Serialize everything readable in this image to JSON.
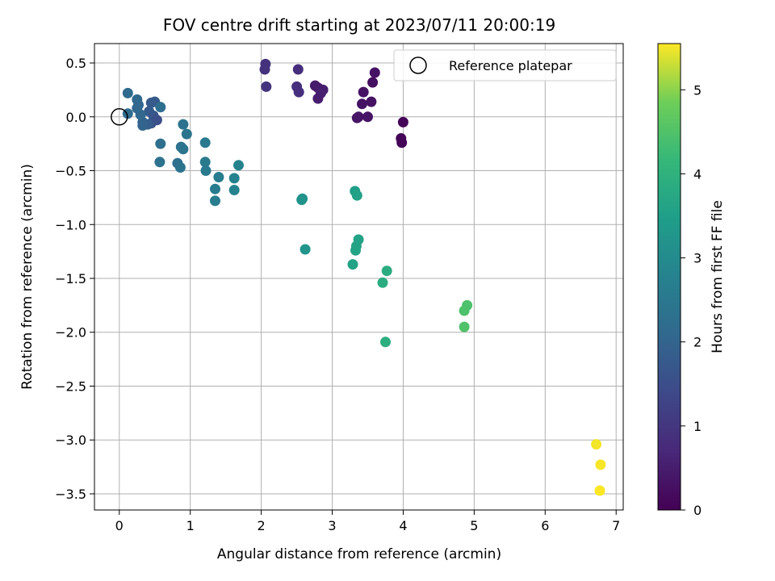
{
  "chart_data": {
    "type": "scatter",
    "title": "FOV centre drift starting at 2023/07/11 20:00:19",
    "xlabel": "Angular distance from reference (arcmin)",
    "ylabel": "Rotation from reference (arcmin)",
    "colorbar_label": "Hours from first FF file",
    "xlim": [
      -0.35,
      7.1
    ],
    "ylim": [
      -3.65,
      0.68
    ],
    "clim": [
      0,
      5.55
    ],
    "xticks": [
      0,
      1,
      2,
      3,
      4,
      5,
      6,
      7
    ],
    "yticks": [
      0.5,
      0.0,
      -0.5,
      -1.0,
      -1.5,
      -2.0,
      -2.5,
      -3.0,
      -3.5
    ],
    "ytick_labels": [
      "0.5",
      "0.0",
      "−0.5",
      "−1.0",
      "−1.5",
      "−2.0",
      "−2.5",
      "−3.0",
      "−3.5"
    ],
    "cticks": [
      0,
      1,
      2,
      3,
      4,
      5
    ],
    "grid": true,
    "colormap": "viridis",
    "legend": {
      "label": "Reference platepar",
      "placement": "upper right"
    },
    "reference_point": {
      "x": 0,
      "y": 0
    },
    "points": [
      {
        "x": 4.0,
        "y": -0.05,
        "t": 0.05
      },
      {
        "x": 3.97,
        "y": -0.2,
        "t": 0.05
      },
      {
        "x": 3.98,
        "y": -0.24,
        "t": 0.08
      },
      {
        "x": 3.6,
        "y": 0.41,
        "t": 0.3
      },
      {
        "x": 3.57,
        "y": 0.32,
        "t": 0.25
      },
      {
        "x": 3.44,
        "y": 0.23,
        "t": 0.3
      },
      {
        "x": 3.55,
        "y": 0.14,
        "t": 0.3
      },
      {
        "x": 3.42,
        "y": 0.12,
        "t": 0.3
      },
      {
        "x": 3.37,
        "y": 0.0,
        "t": 0.35
      },
      {
        "x": 3.35,
        "y": -0.01,
        "t": 0.35
      },
      {
        "x": 3.5,
        "y": 0.0,
        "t": 0.35
      },
      {
        "x": 2.76,
        "y": 0.29,
        "t": 0.45
      },
      {
        "x": 2.8,
        "y": 0.27,
        "t": 0.45
      },
      {
        "x": 2.87,
        "y": 0.25,
        "t": 0.5
      },
      {
        "x": 2.84,
        "y": 0.22,
        "t": 0.55
      },
      {
        "x": 2.8,
        "y": 0.17,
        "t": 0.5
      },
      {
        "x": 2.52,
        "y": 0.44,
        "t": 0.8
      },
      {
        "x": 2.5,
        "y": 0.28,
        "t": 0.85
      },
      {
        "x": 2.53,
        "y": 0.23,
        "t": 0.85
      },
      {
        "x": 2.06,
        "y": 0.49,
        "t": 0.9
      },
      {
        "x": 2.05,
        "y": 0.44,
        "t": 0.9
      },
      {
        "x": 2.07,
        "y": 0.28,
        "t": 0.95
      },
      {
        "x": 0.5,
        "y": 0.14,
        "t": 1.8
      },
      {
        "x": 0.45,
        "y": 0.13,
        "t": 1.8
      },
      {
        "x": 0.42,
        "y": 0.05,
        "t": 1.8
      },
      {
        "x": 0.48,
        "y": 0.01,
        "t": 1.7
      },
      {
        "x": 0.53,
        "y": -0.03,
        "t": 1.55
      },
      {
        "x": 0.45,
        "y": -0.06,
        "t": 1.6
      },
      {
        "x": 0.4,
        "y": -0.07,
        "t": 1.85
      },
      {
        "x": 0.33,
        "y": -0.05,
        "t": 2.0
      },
      {
        "x": 0.33,
        "y": -0.08,
        "t": 2.0
      },
      {
        "x": 0.3,
        "y": 0.02,
        "t": 2.05
      },
      {
        "x": 0.25,
        "y": 0.08,
        "t": 2.05
      },
      {
        "x": 0.27,
        "y": 0.11,
        "t": 2.05
      },
      {
        "x": 0.25,
        "y": 0.16,
        "t": 2.1
      },
      {
        "x": 0.12,
        "y": 0.22,
        "t": 2.15
      },
      {
        "x": 0.12,
        "y": 0.03,
        "t": 2.2
      },
      {
        "x": 0.58,
        "y": 0.09,
        "t": 2.25
      },
      {
        "x": 0.58,
        "y": -0.25,
        "t": 2.3
      },
      {
        "x": 0.57,
        "y": -0.42,
        "t": 2.35
      },
      {
        "x": 0.82,
        "y": -0.43,
        "t": 2.3
      },
      {
        "x": 0.87,
        "y": -0.28,
        "t": 2.35
      },
      {
        "x": 0.9,
        "y": -0.3,
        "t": 2.4
      },
      {
        "x": 0.86,
        "y": -0.47,
        "t": 2.4
      },
      {
        "x": 0.9,
        "y": -0.07,
        "t": 2.35
      },
      {
        "x": 0.95,
        "y": -0.16,
        "t": 2.4
      },
      {
        "x": 1.21,
        "y": -0.24,
        "t": 2.5
      },
      {
        "x": 1.21,
        "y": -0.42,
        "t": 2.55
      },
      {
        "x": 1.22,
        "y": -0.5,
        "t": 2.55
      },
      {
        "x": 1.4,
        "y": -0.56,
        "t": 2.65
      },
      {
        "x": 1.35,
        "y": -0.67,
        "t": 2.6
      },
      {
        "x": 1.35,
        "y": -0.78,
        "t": 2.65
      },
      {
        "x": 1.62,
        "y": -0.57,
        "t": 2.75
      },
      {
        "x": 1.68,
        "y": -0.45,
        "t": 2.8
      },
      {
        "x": 1.62,
        "y": -0.68,
        "t": 2.8
      },
      {
        "x": 2.58,
        "y": -0.76,
        "t": 3.2
      },
      {
        "x": 2.57,
        "y": -0.77,
        "t": 3.2
      },
      {
        "x": 2.62,
        "y": -1.23,
        "t": 3.25
      },
      {
        "x": 3.32,
        "y": -0.69,
        "t": 3.5
      },
      {
        "x": 3.35,
        "y": -0.73,
        "t": 3.55
      },
      {
        "x": 3.37,
        "y": -1.14,
        "t": 3.6
      },
      {
        "x": 3.34,
        "y": -1.2,
        "t": 3.6
      },
      {
        "x": 3.33,
        "y": -1.24,
        "t": 3.6
      },
      {
        "x": 3.29,
        "y": -1.37,
        "t": 3.6
      },
      {
        "x": 3.77,
        "y": -1.43,
        "t": 3.85
      },
      {
        "x": 3.71,
        "y": -1.54,
        "t": 3.85
      },
      {
        "x": 3.75,
        "y": -2.09,
        "t": 3.9
      },
      {
        "x": 4.9,
        "y": -1.75,
        "t": 4.45
      },
      {
        "x": 4.86,
        "y": -1.8,
        "t": 4.45
      },
      {
        "x": 4.86,
        "y": -1.95,
        "t": 4.5
      },
      {
        "x": 6.72,
        "y": -3.04,
        "t": 5.5
      },
      {
        "x": 6.78,
        "y": -3.23,
        "t": 5.52
      },
      {
        "x": 6.77,
        "y": -3.47,
        "t": 5.55
      }
    ]
  }
}
